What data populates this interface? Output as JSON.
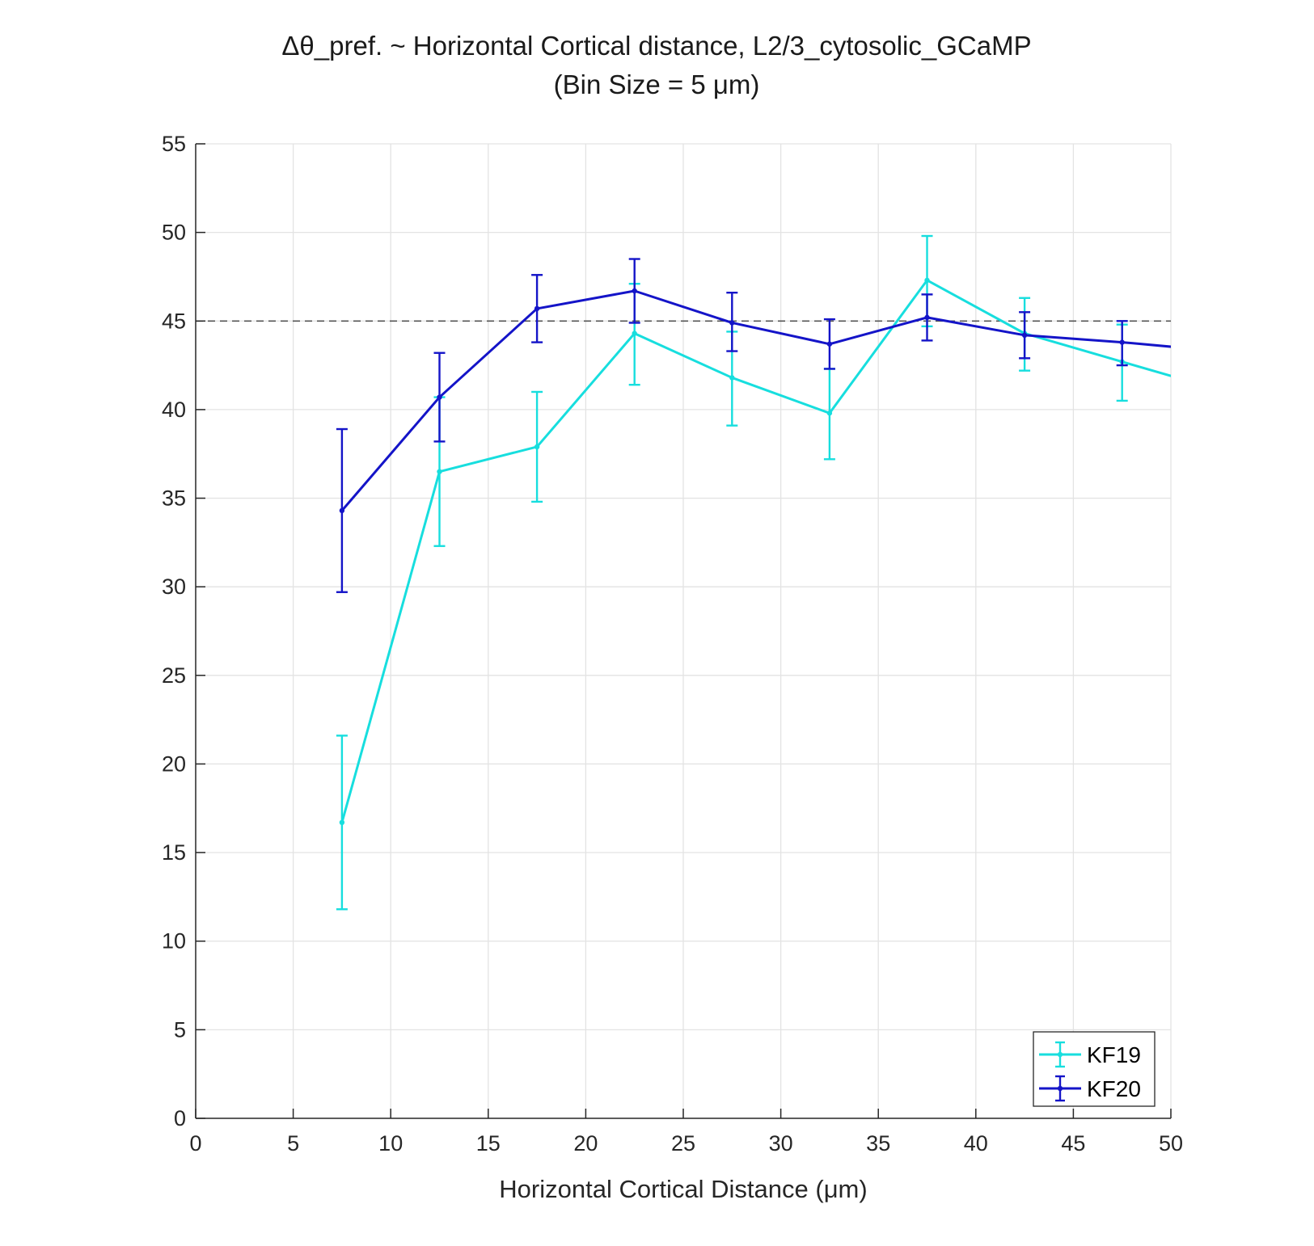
{
  "chart_data": {
    "type": "line",
    "title_line1": "Δθ_pref. ~ Horizontal Cortical distance, L2/3_cytosolic_GCaMP",
    "title_line2": "(Bin Size = 5 μm)",
    "xlabel": "Horizontal Cortical Distance (μm)",
    "ylabel": "",
    "xlim": [
      0,
      50
    ],
    "ylim": [
      0,
      55
    ],
    "xticks": [
      0,
      5,
      10,
      15,
      20,
      25,
      30,
      35,
      40,
      45,
      50
    ],
    "yticks": [
      0,
      5,
      10,
      15,
      20,
      25,
      30,
      35,
      40,
      45,
      50,
      55
    ],
    "grid": true,
    "legend_position": "bottom-right",
    "reference_line": {
      "y": 45,
      "style": "dashed",
      "color": "#555555"
    },
    "series": [
      {
        "name": "KF19",
        "color": "#17dede",
        "x": [
          7.5,
          12.5,
          17.5,
          22.5,
          27.5,
          32.5,
          37.5,
          42.5,
          47.5,
          52.5
        ],
        "y": [
          16.7,
          36.5,
          37.9,
          44.3,
          41.8,
          39.8,
          47.3,
          44.3,
          42.7,
          41.1
        ],
        "err_low": [
          11.8,
          32.3,
          34.8,
          41.4,
          39.1,
          37.2,
          44.7,
          42.2,
          40.5,
          null
        ],
        "err_high": [
          21.6,
          40.7,
          41.0,
          47.1,
          44.4,
          42.3,
          49.8,
          46.3,
          44.8,
          null
        ]
      },
      {
        "name": "KF20",
        "color": "#1414c8",
        "x": [
          7.5,
          12.5,
          17.5,
          22.5,
          27.5,
          32.5,
          37.5,
          42.5,
          47.5,
          52.5
        ],
        "y": [
          34.3,
          40.7,
          45.7,
          46.7,
          44.9,
          43.7,
          45.2,
          44.2,
          43.8,
          43.3
        ],
        "err_low": [
          29.7,
          38.2,
          43.8,
          44.9,
          43.3,
          42.3,
          43.9,
          42.9,
          42.5,
          null
        ],
        "err_high": [
          38.9,
          43.2,
          47.6,
          48.5,
          46.6,
          45.1,
          46.5,
          45.5,
          45.0,
          null
        ]
      }
    ]
  }
}
